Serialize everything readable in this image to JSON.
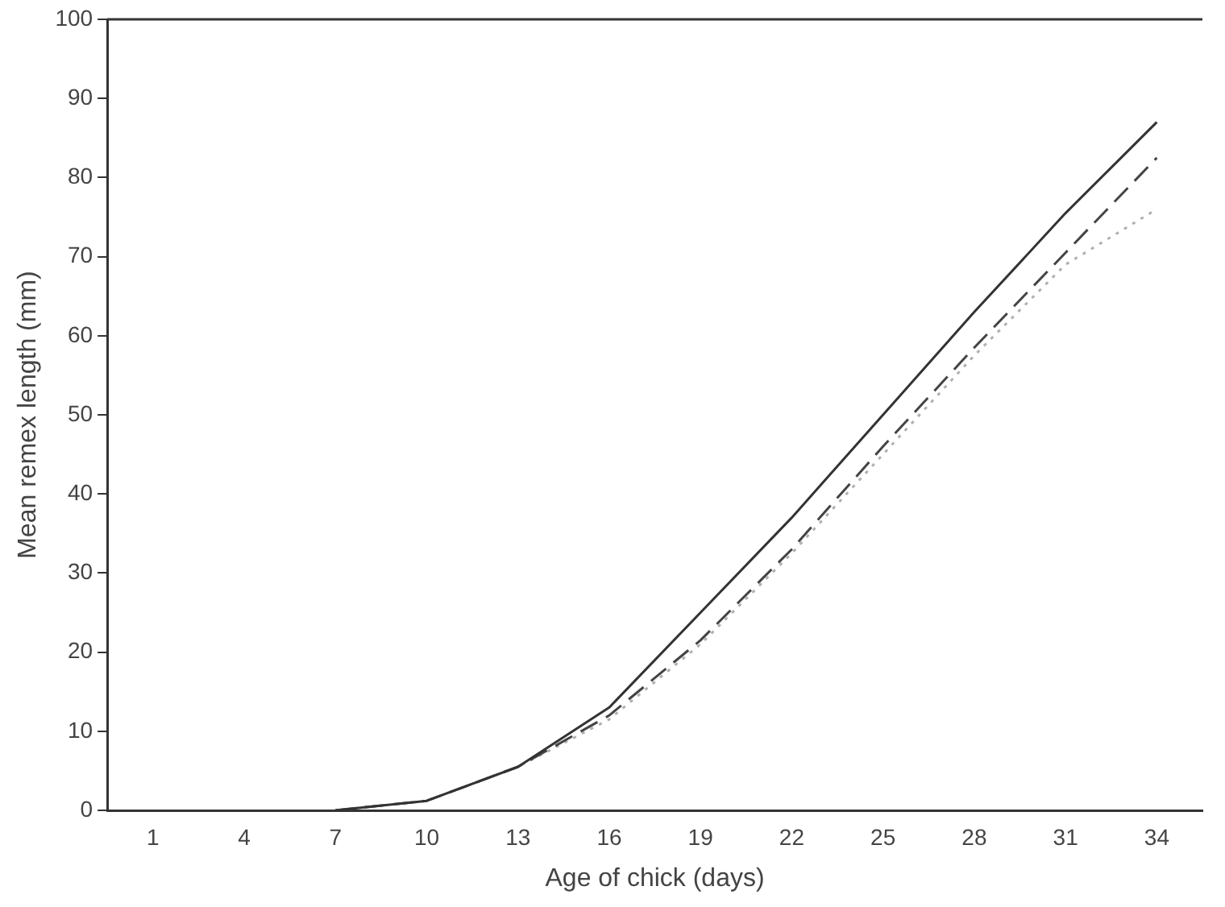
{
  "chart_data": {
    "type": "line",
    "xlabel": "Age of chick (days)",
    "ylabel": "Mean remex length (mm)",
    "categories": [
      "1",
      "4",
      "7",
      "10",
      "13",
      "16",
      "19",
      "22",
      "25",
      "28",
      "31",
      "34"
    ],
    "series": [
      {
        "color": "#333333",
        "line_style": "solid",
        "values": [
          null,
          null,
          0,
          1.2,
          5.5,
          13,
          25,
          37,
          50,
          63,
          75.5,
          87
        ]
      },
      {
        "color": "#444444",
        "line_style": "dashed",
        "values": [
          null,
          null,
          0,
          1.2,
          5.5,
          12,
          21.5,
          33,
          46,
          58.5,
          70.5,
          82.5
        ]
      },
      {
        "color": "#b0b0b0",
        "line_style": "dotted",
        "values": [
          null,
          null,
          0,
          1.2,
          5.5,
          11.5,
          21,
          32.5,
          45,
          57.5,
          69,
          76
        ]
      }
    ],
    "ylim": [
      0,
      100
    ],
    "yticks": [
      0,
      10,
      20,
      30,
      40,
      50,
      60,
      70,
      80,
      90,
      100
    ],
    "grid": false,
    "legend": false,
    "marker": "none"
  }
}
